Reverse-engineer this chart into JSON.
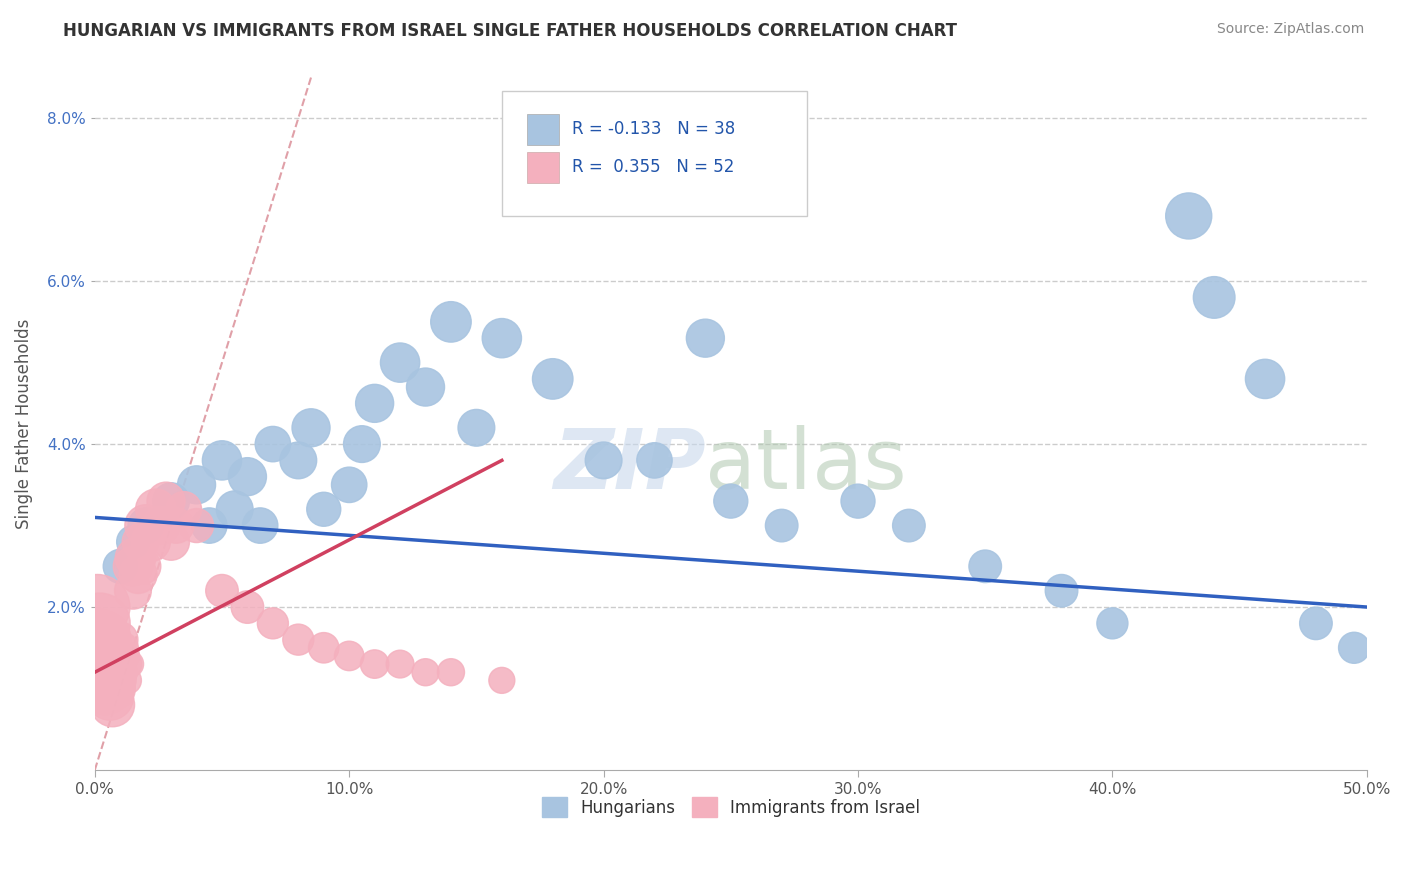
{
  "title": "HUNGARIAN VS IMMIGRANTS FROM ISRAEL SINGLE FATHER HOUSEHOLDS CORRELATION CHART",
  "source": "Source: ZipAtlas.com",
  "ylabel": "Single Father Households",
  "xlim": [
    0.0,
    0.5
  ],
  "ylim": [
    0.0,
    0.085
  ],
  "yticks": [
    0.02,
    0.04,
    0.06,
    0.08
  ],
  "ytick_labels": [
    "2.0%",
    "4.0%",
    "6.0%",
    "8.0%"
  ],
  "xticks": [
    0.0,
    0.1,
    0.2,
    0.3,
    0.4,
    0.5
  ],
  "xtick_labels": [
    "0.0%",
    "10.0%",
    "20.0%",
    "30.0%",
    "40.0%",
    "50.0%"
  ],
  "legend_labels": [
    "Hungarians",
    "Immigrants from Israel"
  ],
  "blue_color": "#a8c4e0",
  "pink_color": "#f4b0be",
  "blue_line_color": "#3060c0",
  "pink_line_color": "#d04060",
  "diag_color": "#e0a0a8",
  "R_blue": -0.133,
  "N_blue": 38,
  "R_pink": 0.355,
  "N_pink": 52,
  "blue_line_x0": 0.0,
  "blue_line_y0": 0.031,
  "blue_line_x1": 0.5,
  "blue_line_y1": 0.02,
  "pink_line_x0": 0.0,
  "pink_line_y0": 0.012,
  "pink_line_x1": 0.16,
  "pink_line_y1": 0.038,
  "blue_scatter_x": [
    0.01,
    0.015,
    0.02,
    0.03,
    0.04,
    0.045,
    0.05,
    0.055,
    0.06,
    0.065,
    0.07,
    0.08,
    0.085,
    0.09,
    0.1,
    0.105,
    0.11,
    0.12,
    0.13,
    0.14,
    0.15,
    0.16,
    0.18,
    0.2,
    0.22,
    0.24,
    0.25,
    0.27,
    0.3,
    0.32,
    0.35,
    0.38,
    0.4,
    0.43,
    0.44,
    0.46,
    0.48,
    0.495
  ],
  "blue_scatter_y": [
    0.025,
    0.028,
    0.03,
    0.033,
    0.035,
    0.03,
    0.038,
    0.032,
    0.036,
    0.03,
    0.04,
    0.038,
    0.042,
    0.032,
    0.035,
    0.04,
    0.045,
    0.05,
    0.047,
    0.055,
    0.042,
    0.053,
    0.048,
    0.038,
    0.038,
    0.053,
    0.033,
    0.03,
    0.033,
    0.03,
    0.025,
    0.022,
    0.018,
    0.068,
    0.058,
    0.048,
    0.018,
    0.015
  ],
  "blue_scatter_size": [
    60,
    55,
    65,
    70,
    75,
    65,
    80,
    70,
    75,
    65,
    65,
    70,
    75,
    60,
    65,
    70,
    75,
    80,
    75,
    85,
    70,
    80,
    85,
    70,
    65,
    75,
    60,
    55,
    60,
    55,
    55,
    55,
    50,
    110,
    90,
    80,
    55,
    50
  ],
  "pink_scatter_x": [
    0.001,
    0.001,
    0.002,
    0.002,
    0.003,
    0.003,
    0.004,
    0.004,
    0.005,
    0.005,
    0.006,
    0.006,
    0.007,
    0.007,
    0.008,
    0.008,
    0.009,
    0.009,
    0.01,
    0.01,
    0.011,
    0.011,
    0.012,
    0.013,
    0.013,
    0.014,
    0.015,
    0.015,
    0.016,
    0.017,
    0.018,
    0.019,
    0.02,
    0.022,
    0.024,
    0.026,
    0.028,
    0.03,
    0.032,
    0.035,
    0.04,
    0.05,
    0.06,
    0.07,
    0.08,
    0.09,
    0.1,
    0.11,
    0.12,
    0.13,
    0.14,
    0.16
  ],
  "pink_scatter_y": [
    0.02,
    0.016,
    0.018,
    0.014,
    0.016,
    0.012,
    0.014,
    0.01,
    0.013,
    0.01,
    0.012,
    0.009,
    0.011,
    0.008,
    0.012,
    0.01,
    0.014,
    0.011,
    0.016,
    0.013,
    0.015,
    0.012,
    0.014,
    0.013,
    0.011,
    0.013,
    0.025,
    0.022,
    0.026,
    0.024,
    0.028,
    0.025,
    0.03,
    0.028,
    0.032,
    0.03,
    0.033,
    0.028,
    0.03,
    0.032,
    0.03,
    0.022,
    0.02,
    0.018,
    0.016,
    0.015,
    0.014,
    0.013,
    0.013,
    0.012,
    0.012,
    0.011
  ],
  "pink_scatter_size": [
    220,
    200,
    190,
    180,
    170,
    160,
    155,
    145,
    140,
    130,
    125,
    115,
    110,
    100,
    95,
    85,
    80,
    70,
    65,
    55,
    50,
    45,
    42,
    40,
    38,
    36,
    80,
    70,
    85,
    75,
    70,
    65,
    90,
    80,
    85,
    75,
    75,
    70,
    65,
    65,
    60,
    55,
    55,
    50,
    50,
    48,
    45,
    42,
    40,
    38,
    38,
    35
  ]
}
